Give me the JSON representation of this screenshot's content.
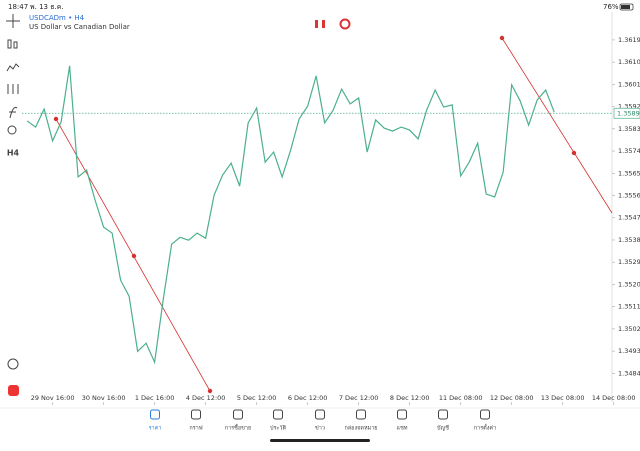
{
  "status_bar": {
    "time": "18:47",
    "date": "พ. 13 ธ.ค.",
    "battery": "76%"
  },
  "toolbar": {
    "timeframe": "H4"
  },
  "chart_data": {
    "type": "line",
    "title": "USDCADm • H4",
    "subtitle": "US Dollar vs Canadian Dollar",
    "series": [
      {
        "color": "#4cb08a",
        "values": [
          1.35862,
          1.35837,
          1.3591,
          1.35781,
          1.35858,
          1.36085,
          1.35635,
          1.35663,
          1.35541,
          1.35432,
          1.35408,
          1.35217,
          1.35152,
          1.34929,
          1.34962,
          1.34885,
          1.35136,
          1.35363,
          1.35391,
          1.35379,
          1.35408,
          1.35387,
          1.35562,
          1.35643,
          1.35691,
          1.35598,
          1.35854,
          1.35914,
          1.35695,
          1.35736,
          1.35635,
          1.35744,
          1.3587,
          1.35922,
          1.36044,
          1.35854,
          1.35906,
          1.35991,
          1.35931,
          1.35955,
          1.35736,
          1.35866,
          1.35833,
          1.35821,
          1.35837,
          1.35825,
          1.35789,
          1.35906,
          1.35987,
          1.35918,
          1.35927,
          1.35639,
          1.35695,
          1.35772,
          1.35566,
          1.35554,
          1.35655,
          1.36008,
          1.35943,
          1.35845,
          1.35947,
          1.35987,
          1.35898
        ]
      }
    ],
    "xlim": [
      -0.6,
      68.8
    ],
    "xticks": [
      {
        "value": 3,
        "label": "29 Nov 16:00"
      },
      {
        "value": 9,
        "label": "30 Nov 16:00"
      },
      {
        "value": 15,
        "label": "1 Dec 16:00"
      },
      {
        "value": 21,
        "label": "4 Dec 12:00"
      },
      {
        "value": 27,
        "label": "5 Dec 12:00"
      },
      {
        "value": 33,
        "label": "6 Dec 12:00"
      },
      {
        "value": 39,
        "label": "7 Dec 12:00"
      },
      {
        "value": 45,
        "label": "8 Dec 12:00"
      },
      {
        "value": 51,
        "label": "11 Dec 08:00"
      },
      {
        "value": 57,
        "label": "12 Dec 08:00"
      },
      {
        "value": 63,
        "label": "13 Dec 08:00"
      },
      {
        "value": 69,
        "label": "14 Dec 08:00"
      }
    ],
    "ylim": [
      1.34724,
      1.36303
    ],
    "yticks": [
      {
        "value": 1.3619,
        "label": "1.36190"
      },
      {
        "value": 1.361,
        "label": "1.36100"
      },
      {
        "value": 1.3601,
        "label": "1.36010"
      },
      {
        "value": 1.3592,
        "label": "1.35920"
      },
      {
        "value": 1.3583,
        "label": "1.35830"
      },
      {
        "value": 1.3574,
        "label": "1.35740"
      },
      {
        "value": 1.3565,
        "label": "1.35650"
      },
      {
        "value": 1.3556,
        "label": "1.35560"
      },
      {
        "value": 1.3547,
        "label": "1.35470"
      },
      {
        "value": 1.3538,
        "label": "1.35380"
      },
      {
        "value": 1.3529,
        "label": "1.35290"
      },
      {
        "value": 1.352,
        "label": "1.35200"
      },
      {
        "value": 1.3511,
        "label": "1.35110"
      },
      {
        "value": 1.3502,
        "label": "1.35020"
      },
      {
        "value": 1.3493,
        "label": "1.34930"
      },
      {
        "value": 1.3484,
        "label": "1.34840"
      }
    ],
    "current_price": 1.35893
  },
  "nav": {
    "items": [
      "ราคา",
      "กราฟ",
      "การซื้อขาย",
      "ประวัติ",
      "ข่าว",
      "กล่องจดหมาย",
      "แชท",
      "บัญชี",
      "การตั้งค่า"
    ]
  }
}
